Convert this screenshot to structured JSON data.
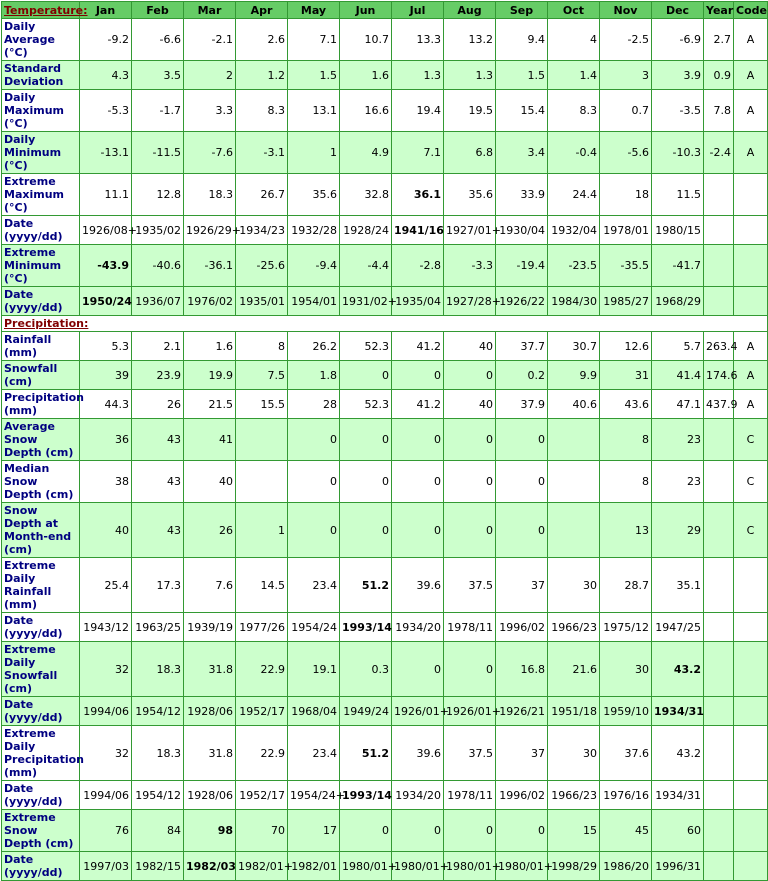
{
  "table": {
    "columns": [
      "Jan",
      "Feb",
      "Mar",
      "Apr",
      "May",
      "Jun",
      "Jul",
      "Aug",
      "Sep",
      "Oct",
      "Nov",
      "Dec",
      "Year",
      "Code"
    ],
    "sections": [
      {
        "title": "Temperature:",
        "rows": [
          {
            "label": "Daily Average (°C)",
            "shaded": false,
            "cells": [
              -9.2,
              -6.6,
              -2.1,
              2.6,
              7.1,
              10.7,
              13.3,
              13.2,
              9.4,
              4,
              -2.5,
              -6.9,
              2.7,
              "A"
            ]
          },
          {
            "label": "Standard Deviation",
            "shaded": true,
            "cells": [
              4.3,
              3.5,
              2,
              1.2,
              1.5,
              1.6,
              1.3,
              1.3,
              1.5,
              1.4,
              3,
              3.9,
              0.9,
              "A"
            ]
          },
          {
            "label": "Daily Maximum (°C)",
            "shaded": false,
            "cells": [
              -5.3,
              -1.7,
              3.3,
              8.3,
              13.1,
              16.6,
              19.4,
              19.5,
              15.4,
              8.3,
              0.7,
              -3.5,
              7.8,
              "A"
            ]
          },
          {
            "label": "Daily Minimum (°C)",
            "shaded": true,
            "cells": [
              -13.1,
              -11.5,
              -7.6,
              -3.1,
              1,
              4.9,
              7.1,
              6.8,
              3.4,
              -0.4,
              -5.6,
              -10.3,
              -2.4,
              "A"
            ]
          },
          {
            "label": "Extreme Maximum (°C)",
            "shaded": false,
            "bold": 6,
            "cells": [
              11.1,
              12.8,
              18.3,
              26.7,
              35.6,
              32.8,
              36.1,
              35.6,
              33.9,
              24.4,
              18,
              11.5,
              null,
              null
            ]
          },
          {
            "label": "Date (yyyy/dd)",
            "shaded": false,
            "bold": 6,
            "cells": [
              "1926/08+",
              "1935/02",
              "1926/29+",
              "1934/23",
              "1932/28",
              "1928/24",
              "1941/16",
              "1927/01+",
              "1930/04",
              "1932/04",
              "1978/01",
              "1980/15",
              null,
              null
            ]
          },
          {
            "label": "Extreme Minimum (°C)",
            "shaded": true,
            "bold": 0,
            "cells": [
              -43.9,
              -40.6,
              -36.1,
              -25.6,
              -9.4,
              -4.4,
              -2.8,
              -3.3,
              -19.4,
              -23.5,
              -35.5,
              -41.7,
              null,
              null
            ]
          },
          {
            "label": "Date (yyyy/dd)",
            "shaded": true,
            "bold": 0,
            "cells": [
              "1950/24",
              "1936/07",
              "1976/02",
              "1935/01",
              "1954/01",
              "1931/02+",
              "1935/04",
              "1927/28+",
              "1926/22",
              "1984/30",
              "1985/27",
              "1968/29",
              null,
              null
            ]
          }
        ]
      },
      {
        "title": "Precipitation:",
        "rows": [
          {
            "label": "Rainfall (mm)",
            "shaded": false,
            "cells": [
              5.3,
              2.1,
              1.6,
              8,
              26.2,
              52.3,
              41.2,
              40,
              37.7,
              30.7,
              12.6,
              5.7,
              263.4,
              "A"
            ]
          },
          {
            "label": "Snowfall (cm)",
            "shaded": true,
            "cells": [
              39,
              23.9,
              19.9,
              7.5,
              1.8,
              0,
              0,
              0,
              0.2,
              9.9,
              31,
              41.4,
              174.6,
              "A"
            ]
          },
          {
            "label": "Precipitation (mm)",
            "shaded": false,
            "cells": [
              44.3,
              26,
              21.5,
              15.5,
              28,
              52.3,
              41.2,
              40,
              37.9,
              40.6,
              43.6,
              47.1,
              437.9,
              "A"
            ]
          },
          {
            "label": "Average Snow Depth (cm)",
            "shaded": true,
            "cells": [
              36,
              43,
              41,
              null,
              0,
              0,
              0,
              0,
              0,
              null,
              8,
              23,
              null,
              "C"
            ]
          },
          {
            "label": "Median Snow Depth (cm)",
            "shaded": false,
            "cells": [
              38,
              43,
              40,
              null,
              0,
              0,
              0,
              0,
              0,
              null,
              8,
              23,
              null,
              "C"
            ]
          },
          {
            "label": "Snow Depth at Month-end (cm)",
            "shaded": true,
            "cells": [
              40,
              43,
              26,
              1,
              0,
              0,
              0,
              0,
              0,
              null,
              13,
              29,
              null,
              "C"
            ]
          },
          {
            "label": "Extreme Daily Rainfall (mm)",
            "shaded": false,
            "bold": 5,
            "cells": [
              25.4,
              17.3,
              7.6,
              14.5,
              23.4,
              51.2,
              39.6,
              37.5,
              37,
              30,
              28.7,
              35.1,
              null,
              null
            ]
          },
          {
            "label": "Date (yyyy/dd)",
            "shaded": false,
            "bold": 5,
            "cells": [
              "1943/12",
              "1963/25",
              "1939/19",
              "1977/26",
              "1954/24",
              "1993/14",
              "1934/20",
              "1978/11",
              "1996/02",
              "1966/23",
              "1975/12",
              "1947/25",
              null,
              null
            ]
          },
          {
            "label": "Extreme Daily Snowfall (cm)",
            "shaded": true,
            "bold": 11,
            "cells": [
              32,
              18.3,
              31.8,
              22.9,
              19.1,
              0.3,
              0,
              0,
              16.8,
              21.6,
              30,
              43.2,
              null,
              null
            ]
          },
          {
            "label": "Date (yyyy/dd)",
            "shaded": true,
            "bold": 11,
            "cells": [
              "1994/06",
              "1954/12",
              "1928/06",
              "1952/17",
              "1968/04",
              "1949/24",
              "1926/01+",
              "1926/01+",
              "1926/21",
              "1951/18",
              "1959/10",
              "1934/31",
              null,
              null
            ]
          },
          {
            "label": "Extreme Daily Precipitation (mm)",
            "shaded": false,
            "bold": 5,
            "cells": [
              32,
              18.3,
              31.8,
              22.9,
              23.4,
              51.2,
              39.6,
              37.5,
              37,
              30,
              37.6,
              43.2,
              null,
              null
            ]
          },
          {
            "label": "Date (yyyy/dd)",
            "shaded": false,
            "bold": 5,
            "cells": [
              "1994/06",
              "1954/12",
              "1928/06",
              "1952/17",
              "1954/24+",
              "1993/14",
              "1934/20",
              "1978/11",
              "1996/02",
              "1966/23",
              "1976/16",
              "1934/31",
              null,
              null
            ]
          },
          {
            "label": "Extreme Snow Depth (cm)",
            "shaded": true,
            "bold": 2,
            "cells": [
              76,
              84,
              98,
              70,
              17,
              0,
              0,
              0,
              0,
              15,
              45,
              60,
              null,
              null
            ]
          },
          {
            "label": "Date (yyyy/dd)",
            "shaded": true,
            "bold": 2,
            "cells": [
              "1997/03",
              "1982/15",
              "1982/03",
              "1982/01+",
              "1982/01",
              "1980/01+",
              "1980/01+",
              "1980/01+",
              "1980/01+",
              "1998/29",
              "1986/20",
              "1996/31",
              null,
              null
            ]
          }
        ]
      }
    ]
  }
}
